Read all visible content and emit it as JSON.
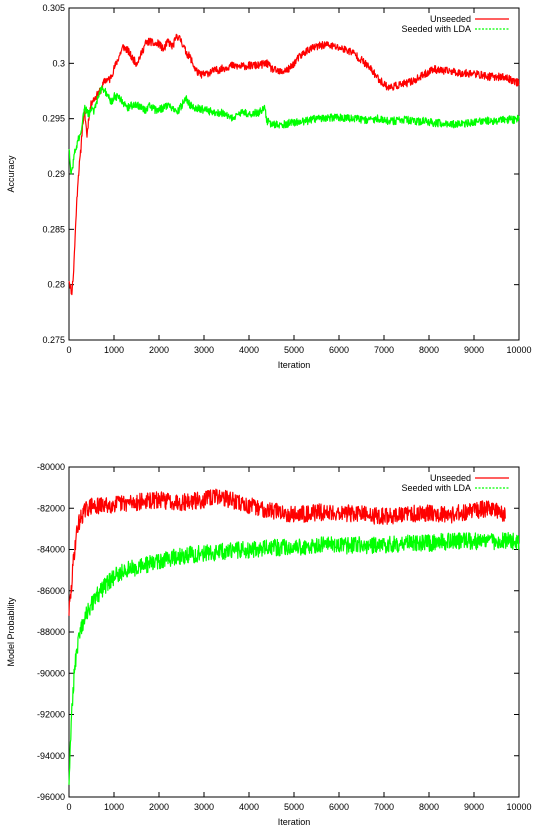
{
  "chart_data": [
    {
      "type": "line",
      "title": "",
      "xlabel": "Iteration",
      "ylabel": "Accuracy",
      "xlim": [
        0,
        10000
      ],
      "ylim": [
        0.275,
        0.305
      ],
      "xticks": [
        "0",
        "1000",
        "2000",
        "3000",
        "4000",
        "5000",
        "6000",
        "7000",
        "8000",
        "9000",
        "10000"
      ],
      "yticks": [
        "0.275",
        "0.28",
        "0.285",
        "0.29",
        "0.295",
        "0.3",
        "0.305"
      ],
      "grid": false,
      "legend_position": "top-right",
      "series": [
        {
          "name": "Unseeded",
          "color": "#ff0000",
          "x": [
            0,
            60,
            100,
            160,
            200,
            260,
            300,
            350,
            400,
            450,
            500,
            600,
            700,
            800,
            900,
            1000,
            1100,
            1200,
            1300,
            1400,
            1500,
            1600,
            1700,
            1800,
            1900,
            2000,
            2100,
            2200,
            2300,
            2400,
            2500,
            2600,
            2700,
            2800,
            2900,
            3000,
            3200,
            3400,
            3600,
            3800,
            4000,
            4200,
            4400,
            4500,
            4700,
            4900,
            5100,
            5300,
            5500,
            5700,
            5900,
            6100,
            6300,
            6500,
            6700,
            6900,
            7100,
            7300,
            7500,
            7700,
            7900,
            8100,
            8300,
            8500,
            8700,
            8900,
            9100,
            9300,
            9500,
            9700,
            9900,
            10000
          ],
          "values": [
            0.2805,
            0.2792,
            0.281,
            0.2865,
            0.2895,
            0.292,
            0.2945,
            0.2955,
            0.2935,
            0.2955,
            0.2965,
            0.297,
            0.2975,
            0.2985,
            0.2985,
            0.2995,
            0.3005,
            0.3015,
            0.3012,
            0.3005,
            0.3,
            0.3008,
            0.3018,
            0.302,
            0.3017,
            0.3018,
            0.3012,
            0.302,
            0.3015,
            0.3025,
            0.302,
            0.301,
            0.3005,
            0.2995,
            0.299,
            0.299,
            0.2993,
            0.2995,
            0.2998,
            0.2997,
            0.2998,
            0.2998,
            0.3,
            0.2995,
            0.2992,
            0.2995,
            0.3005,
            0.3012,
            0.3015,
            0.3017,
            0.3015,
            0.3013,
            0.301,
            0.3003,
            0.2995,
            0.2985,
            0.2978,
            0.298,
            0.2982,
            0.2985,
            0.299,
            0.2995,
            0.2993,
            0.2993,
            0.2991,
            0.2991,
            0.299,
            0.2988,
            0.2988,
            0.2987,
            0.2984,
            0.2982
          ]
        },
        {
          "name": "Seeded with LDA",
          "color": "#00ff00",
          "x": [
            0,
            40,
            80,
            120,
            160,
            200,
            240,
            280,
            320,
            360,
            400,
            450,
            500,
            550,
            600,
            650,
            700,
            750,
            800,
            850,
            900,
            950,
            1000,
            1100,
            1200,
            1300,
            1400,
            1500,
            1600,
            1700,
            1800,
            1900,
            2000,
            2100,
            2200,
            2300,
            2400,
            2500,
            2600,
            2700,
            2800,
            3000,
            3200,
            3400,
            3600,
            3800,
            4000,
            4200,
            4300,
            4350,
            4400,
            4500,
            4700,
            4900,
            5100,
            5300,
            5500,
            5700,
            5900,
            6100,
            6300,
            6500,
            6700,
            6900,
            7100,
            7300,
            7500,
            7700,
            7900,
            8100,
            8300,
            8500,
            8700,
            8900,
            9100,
            9300,
            9500,
            9700,
            9900,
            10000
          ],
          "values": [
            0.2925,
            0.29,
            0.2905,
            0.292,
            0.2925,
            0.293,
            0.2935,
            0.294,
            0.2955,
            0.296,
            0.2955,
            0.2955,
            0.296,
            0.2955,
            0.2965,
            0.2968,
            0.2975,
            0.2978,
            0.2975,
            0.297,
            0.2968,
            0.2965,
            0.297,
            0.297,
            0.2965,
            0.296,
            0.2962,
            0.2963,
            0.296,
            0.2958,
            0.2962,
            0.2958,
            0.2958,
            0.296,
            0.2963,
            0.2958,
            0.2955,
            0.2962,
            0.2968,
            0.2962,
            0.296,
            0.2958,
            0.2956,
            0.2955,
            0.295,
            0.2955,
            0.2955,
            0.2955,
            0.2958,
            0.296,
            0.2948,
            0.2945,
            0.2944,
            0.2946,
            0.2947,
            0.2948,
            0.295,
            0.2951,
            0.2951,
            0.2951,
            0.295,
            0.2949,
            0.2949,
            0.295,
            0.2948,
            0.2948,
            0.2949,
            0.2947,
            0.2948,
            0.2946,
            0.2946,
            0.2945,
            0.2945,
            0.2946,
            0.2947,
            0.2948,
            0.2948,
            0.2949,
            0.2949,
            0.295
          ]
        }
      ]
    },
    {
      "type": "line",
      "title": "",
      "xlabel": "Iteration",
      "ylabel": "Model Probability",
      "xlim": [
        0,
        10000
      ],
      "ylim": [
        -96000,
        -80000
      ],
      "xticks": [
        "0",
        "1000",
        "2000",
        "3000",
        "4000",
        "5000",
        "6000",
        "7000",
        "8000",
        "9000",
        "10000"
      ],
      "yticks": [
        "-96000",
        "-94000",
        "-92000",
        "-90000",
        "-88000",
        "-86000",
        "-84000",
        "-82000",
        "-80000"
      ],
      "grid": false,
      "legend_position": "top-right",
      "series": [
        {
          "name": "Unseeded",
          "color": "#ff0000",
          "x": [
            0,
            50,
            100,
            150,
            200,
            300,
            400,
            500,
            700,
            1000,
            1500,
            2000,
            2500,
            3000,
            3300,
            3600,
            4000,
            4500,
            5000,
            5500,
            6000,
            6500,
            7000,
            7500,
            8000,
            8500,
            9000,
            9400,
            9700
          ],
          "values": [
            -87000,
            -86000,
            -84500,
            -83500,
            -82800,
            -82300,
            -82000,
            -81900,
            -81900,
            -81800,
            -81700,
            -81600,
            -81700,
            -81600,
            -81400,
            -81600,
            -81900,
            -82100,
            -82300,
            -82200,
            -82200,
            -82300,
            -82400,
            -82300,
            -82200,
            -82300,
            -82100,
            -82000,
            -82300
          ]
        },
        {
          "name": "Seeded with LDA",
          "color": "#00ff00",
          "x": [
            0,
            30,
            60,
            100,
            150,
            200,
            300,
            400,
            500,
            700,
            1000,
            1300,
            1600,
            2000,
            2500,
            3000,
            3500,
            4000,
            4500,
            5000,
            5500,
            6000,
            6500,
            7000,
            7500,
            8000,
            8500,
            9000,
            9500,
            10000
          ],
          "values": [
            -95000,
            -93500,
            -92000,
            -90500,
            -89300,
            -88500,
            -87700,
            -87100,
            -86700,
            -86000,
            -85300,
            -85000,
            -84800,
            -84600,
            -84300,
            -84200,
            -84100,
            -84000,
            -83900,
            -83900,
            -83800,
            -83800,
            -83800,
            -83800,
            -83700,
            -83700,
            -83600,
            -83600,
            -83600,
            -83600
          ]
        }
      ]
    }
  ]
}
